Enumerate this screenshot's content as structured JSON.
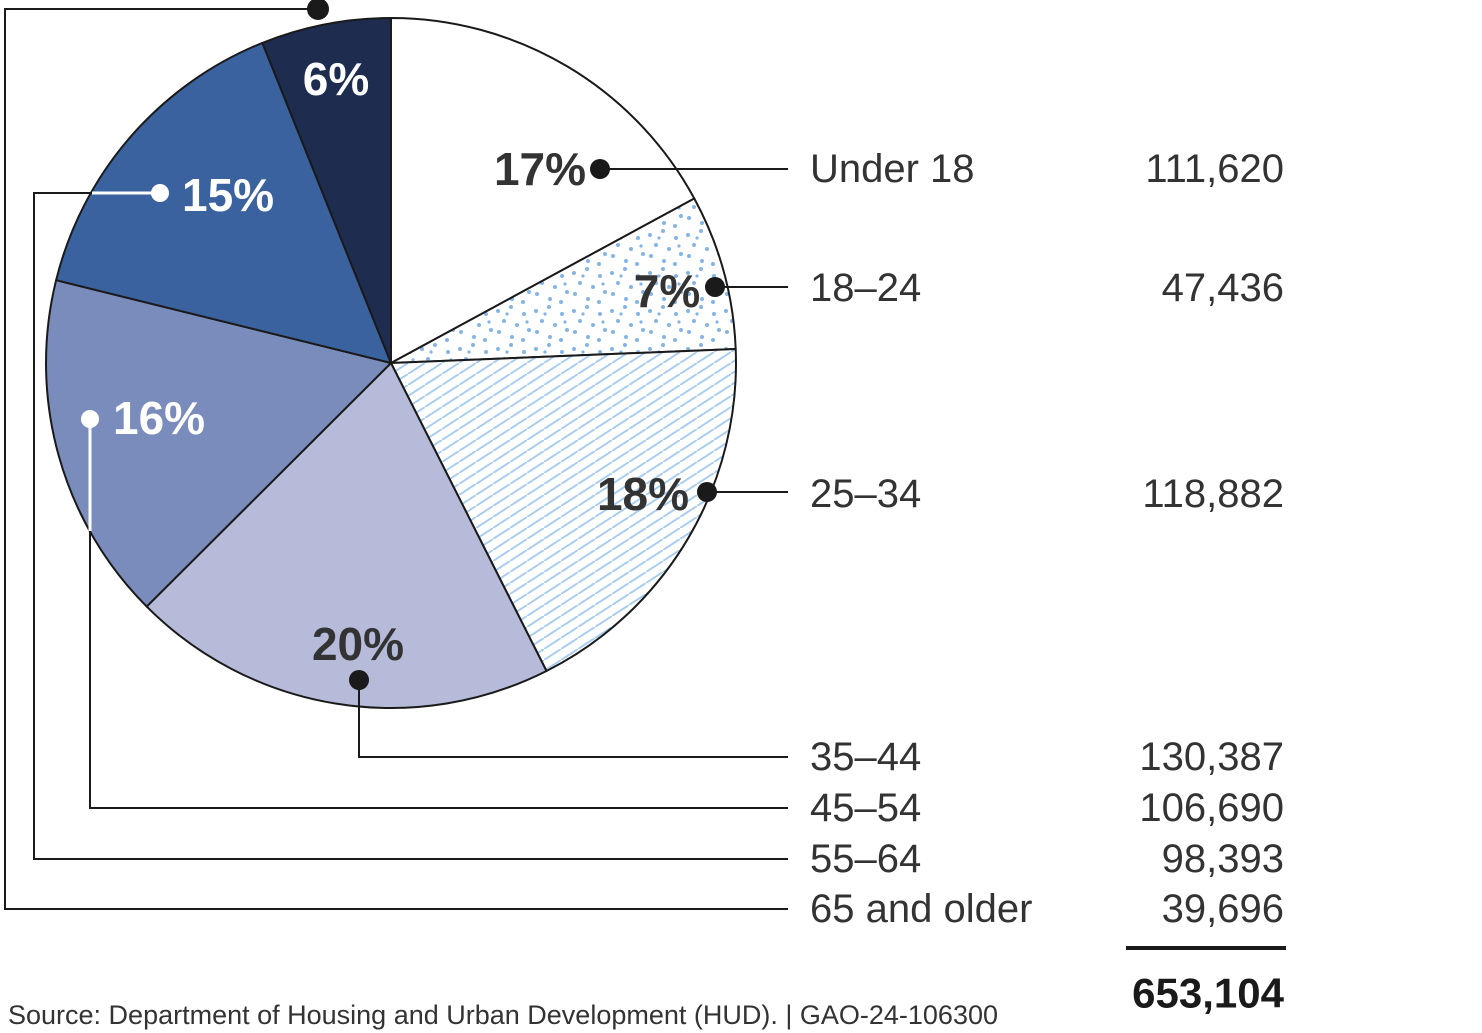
{
  "chart_data": {
    "type": "pie",
    "title": "",
    "legend_position": "right",
    "slices": [
      {
        "label": "Under 18",
        "value": 111620,
        "value_label": "111,620",
        "percent_label": "17%",
        "fill": "#ffffff",
        "pattern": "none",
        "percent_text_color": "#333333"
      },
      {
        "label": "18–24",
        "value": 47436,
        "value_label": "47,436",
        "percent_label": "7%",
        "fill": "#ffffff",
        "pattern": "dots",
        "percent_text_color": "#333333"
      },
      {
        "label": "25–34",
        "value": 118882,
        "value_label": "118,882",
        "percent_label": "18%",
        "fill": "#ffffff",
        "pattern": "hatch",
        "percent_text_color": "#333333"
      },
      {
        "label": "35–44",
        "value": 130387,
        "value_label": "130,387",
        "percent_label": "20%",
        "fill": "#b7bbda",
        "pattern": "none",
        "percent_text_color": "#333333"
      },
      {
        "label": "45–54",
        "value": 106690,
        "value_label": "106,690",
        "percent_label": "16%",
        "fill": "#7a8cbb",
        "pattern": "none",
        "percent_text_color": "#ffffff"
      },
      {
        "label": "55–64",
        "value": 98393,
        "value_label": "98,393",
        "percent_label": "15%",
        "fill": "#3a629f",
        "pattern": "none",
        "percent_text_color": "#ffffff"
      },
      {
        "label": "65 and older",
        "value": 39696,
        "value_label": "39,696",
        "percent_label": "6%",
        "fill": "#1d2c4f",
        "pattern": "none",
        "percent_text_color": "#ffffff"
      }
    ],
    "total_label": "653,104",
    "colors": {
      "outline": "#1a1a1a",
      "pattern_blue": "#85b5e6",
      "hatch_blue": "#a9cdf1"
    }
  },
  "source_note": "Source: Department of Housing and Urban Development (HUD).  |  GAO-24-106300"
}
